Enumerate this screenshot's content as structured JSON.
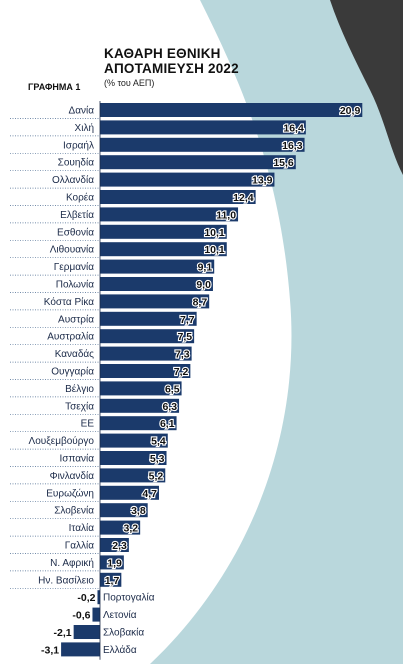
{
  "header": {
    "title_line1": "ΚΑΘΑΡΗ ΕΘΝΙΚΗ",
    "title_line2": "ΑΠΟΤΑΜΙΕΥΣΗ 2022",
    "subtitle": "(% του ΑΕΠ)",
    "figure_label": "ΓΡΑΦΗΜΑ 1"
  },
  "colors": {
    "bar": "#1b3a6b",
    "background_shape": "#b9d7dc",
    "dotted_line": "#4a6a90"
  },
  "chart_data": {
    "type": "bar",
    "orientation": "horizontal",
    "categories": [
      "Δανία",
      "Χιλή",
      "Ισραήλ",
      "Σουηδία",
      "Ολλανδία",
      "Κορέα",
      "Ελβετία",
      "Εσθονία",
      "Λιθουανία",
      "Γερμανία",
      "Πολωνία",
      "Κόστα Ρίκα",
      "Αυστρία",
      "Αυστραλία",
      "Καναδάς",
      "Ουγγαρία",
      "Βέλγιο",
      "Τσεχία",
      "ΕΕ",
      "Λουξεμβούργο",
      "Ισπανία",
      "Φινλανδία",
      "Ευρωζώνη",
      "Σλοβενία",
      "Ιταλία",
      "Γαλλία",
      "Ν. Αφρική",
      "Ην. Βασίλειο",
      "Πορτογαλία",
      "Λετονία",
      "Σλοβακία",
      "Ελλάδα"
    ],
    "values": [
      20.9,
      16.4,
      16.3,
      15.6,
      13.9,
      12.4,
      11.0,
      10.1,
      10.1,
      9.1,
      9.0,
      8.7,
      7.7,
      7.5,
      7.3,
      7.2,
      6.5,
      6.3,
      6.1,
      5.4,
      5.3,
      5.2,
      4.7,
      3.8,
      3.2,
      2.3,
      1.9,
      1.7,
      -0.2,
      -0.6,
      -2.1,
      -3.1
    ],
    "value_labels": [
      "20,9",
      "16,4",
      "16,3",
      "15,6",
      "13,9",
      "12,4",
      "11,0",
      "10,1",
      "10,1",
      "9,1",
      "9,0",
      "8,7",
      "7,7",
      "7,5",
      "7,3",
      "7,2",
      "6,5",
      "6,3",
      "6,1",
      "5,4",
      "5,3",
      "5,2",
      "4,7",
      "3,8",
      "3,2",
      "2,3",
      "1,9",
      "1,7",
      "-0,2",
      "-0,6",
      "-2,1",
      "-3,1"
    ]
  }
}
